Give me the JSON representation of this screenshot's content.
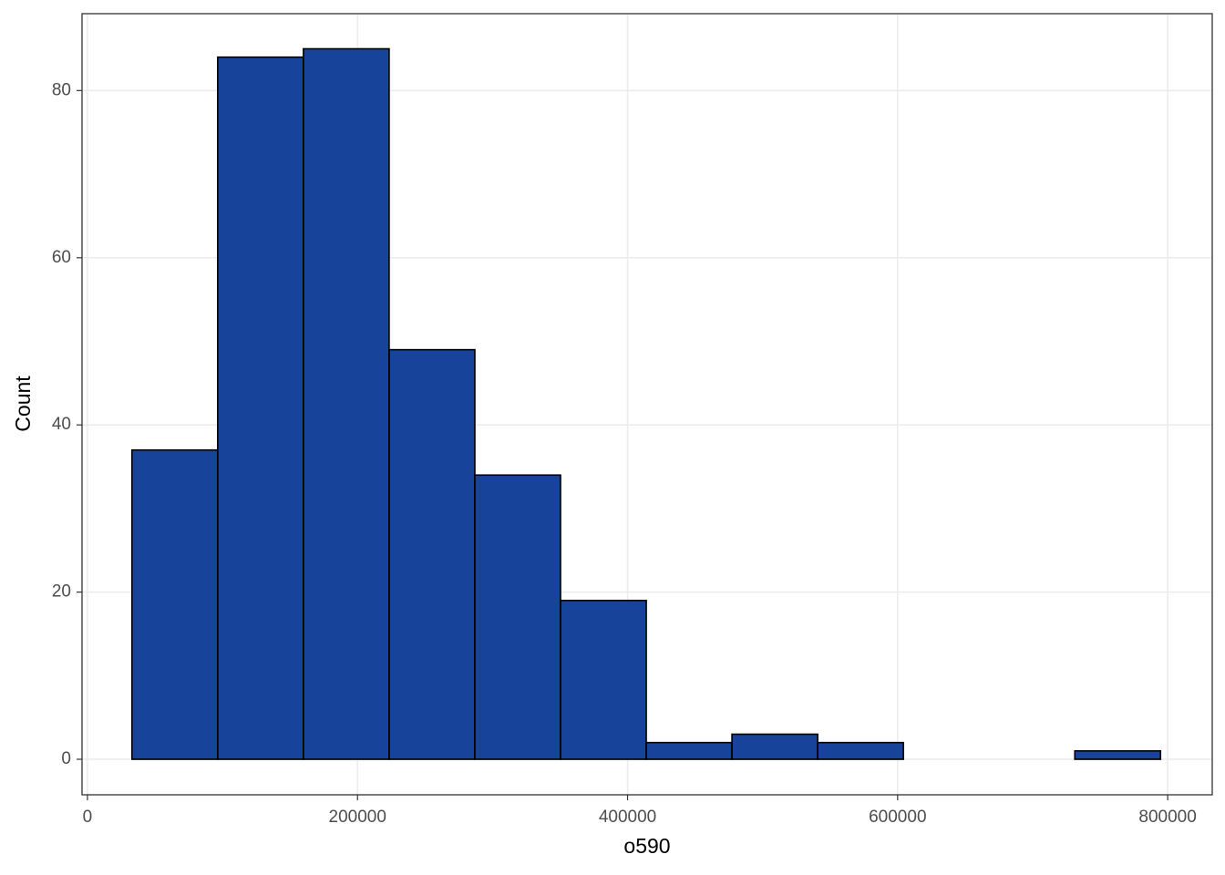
{
  "chart_data": {
    "type": "histogram",
    "x_label": "o590",
    "y_label": "Count",
    "bins": [
      33000,
      96475,
      159950,
      223425,
      286900,
      350375,
      413850,
      477325,
      540800,
      604275,
      667750,
      731225,
      794700
    ],
    "values": [
      37,
      84,
      85,
      49,
      34,
      19,
      2,
      3,
      2,
      0,
      0,
      1
    ],
    "color": "#18439a",
    "edge_color": "#000000",
    "xlim": [
      -4000,
      833000
    ],
    "xticks": [
      0,
      200000,
      400000,
      600000,
      800000
    ],
    "ylim": [
      -4.25,
      89.2
    ],
    "yticks": [
      0,
      20,
      40,
      60,
      80
    ],
    "grid": true
  }
}
